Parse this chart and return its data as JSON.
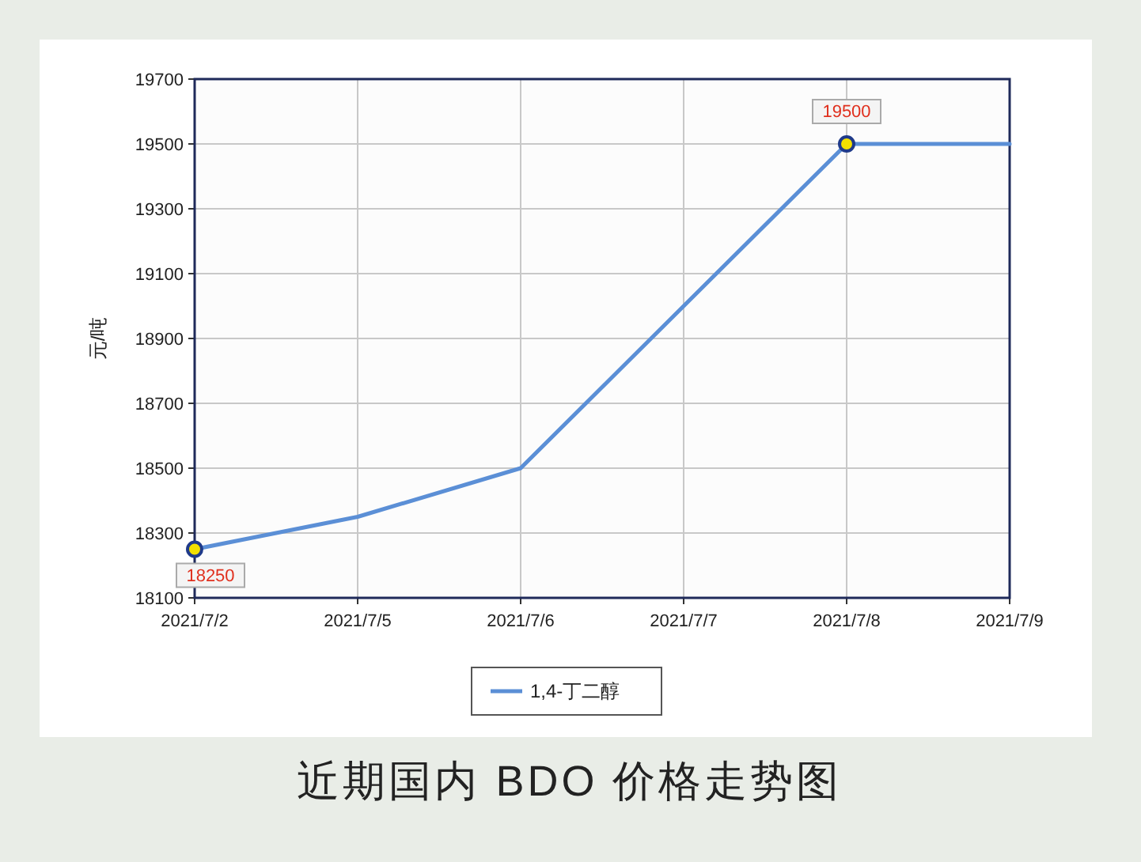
{
  "chart_data": {
    "type": "line",
    "title": "近期国内 BDO 价格走势图",
    "ylabel": "元/吨",
    "categories": [
      "2021/7/2",
      "2021/7/5",
      "2021/7/6",
      "2021/7/7",
      "2021/7/8",
      "2021/7/9"
    ],
    "series": [
      {
        "name": "1,4-丁二醇",
        "color": "#5b8fd6",
        "values": [
          18250,
          18350,
          18500,
          19000,
          19500,
          19500
        ]
      },
      {
        "type": "scatter",
        "color": "#f3e000",
        "values": [
          18250,
          null,
          null,
          null,
          19500,
          null
        ],
        "value_labels": [
          "18250",
          null,
          null,
          null,
          "19500",
          null
        ]
      }
    ],
    "ylim": [
      18100,
      19700
    ],
    "yticks": [
      18100,
      18300,
      18500,
      18700,
      18900,
      19100,
      19300,
      19500,
      19700
    ],
    "grid": true,
    "legend": "bottom"
  }
}
